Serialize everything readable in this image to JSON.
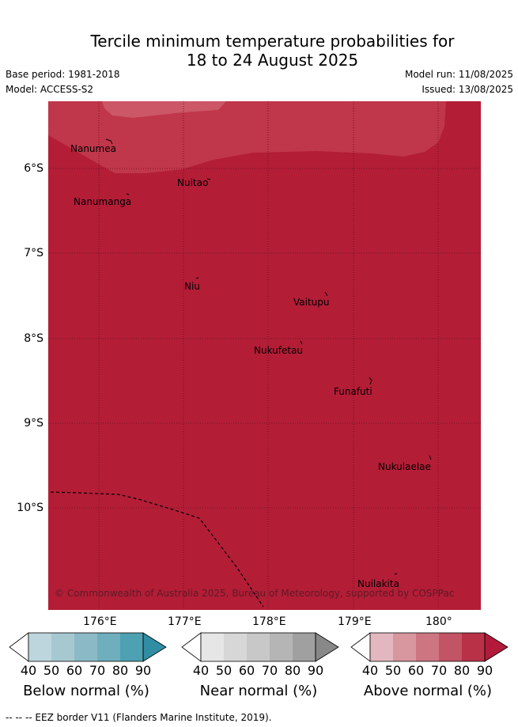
{
  "header": {
    "title_line1": "Tercile minimum temperature probabilities for",
    "title_line2": "18 to 24 August 2025",
    "base_period": "Base period: 1981-2018",
    "model": "Model: ACCESS-S2",
    "model_run": "Model run: 11/08/2025",
    "issued": "Issued: 13/08/2025"
  },
  "map": {
    "fill_color": "#b31d36",
    "light_band_color": "#c0364a",
    "lon_labels": [
      "176°E",
      "177°E",
      "178°E",
      "179°E",
      "180°"
    ],
    "lat_labels": [
      "6°S",
      "7°S",
      "8°S",
      "9°S",
      "10°S"
    ],
    "islands": [
      {
        "name": "Nanumea"
      },
      {
        "name": "Nuitao"
      },
      {
        "name": "Nanumanga"
      },
      {
        "name": "Niu"
      },
      {
        "name": "Vaitupu"
      },
      {
        "name": "Nukufetau"
      },
      {
        "name": "Funafuti"
      },
      {
        "name": "Nukulaelae"
      },
      {
        "name": "Nuilakita"
      }
    ],
    "copyright": "© Commonwealth of Australia 2025, Bureau of Meteorology, supported by COSPPac"
  },
  "colorbars": [
    {
      "title": "Below normal (%)",
      "colors": [
        "#ffffff",
        "#bdd6dd",
        "#a6c9d1",
        "#8bbac6",
        "#6faebd",
        "#4ea1b2",
        "#2f8ea3"
      ]
    },
    {
      "title": "Near normal (%)",
      "colors": [
        "#ffffff",
        "#e6e6e6",
        "#d7d7d7",
        "#c8c8c8",
        "#b5b5b5",
        "#a0a0a0",
        "#888888"
      ]
    },
    {
      "title": "Above normal (%)",
      "colors": [
        "#ffffff",
        "#e2b7bf",
        "#d8969f",
        "#cd7581",
        "#c35465",
        "#b93147",
        "#b31a3a"
      ]
    }
  ],
  "colorbar_ticks": [
    "40",
    "50",
    "60",
    "70",
    "80",
    "90"
  ],
  "footer": "--  --  -- EEZ border V11 (Flanders Marine Institute, 2019)."
}
